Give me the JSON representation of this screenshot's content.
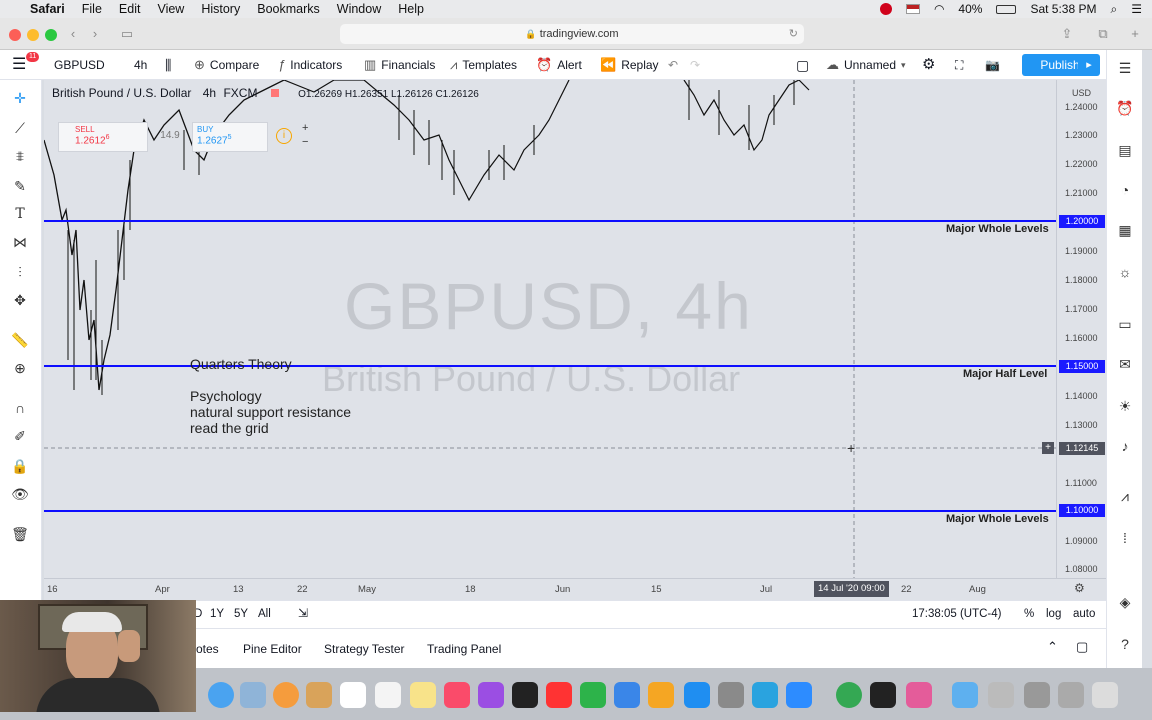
{
  "menubar": {
    "app": "Safari",
    "items": [
      "File",
      "Edit",
      "View",
      "History",
      "Bookmarks",
      "Window",
      "Help"
    ],
    "battery": "40%",
    "clock": "Sat 5:38 PM"
  },
  "browser": {
    "url": "tradingview.com",
    "badge": "11"
  },
  "header": {
    "symbol": "GBPUSD",
    "interval": "4h",
    "compare": "Compare",
    "indicators": "Indicators",
    "financials": "Financials",
    "templates": "Templates",
    "alert": "Alert",
    "replay": "Replay",
    "layout_name": "Unnamed",
    "publish": "Publish"
  },
  "legend": {
    "name": "British Pound / U.S. Dollar",
    "interval": "4h",
    "exchange": "FXCM",
    "ohlc": "O1.26269  H1.26351  L1.26126  C1.26126"
  },
  "trade": {
    "sell_label": "SELL",
    "sell_price": "1.2612",
    "sell_sup": "6",
    "spread": "14.9",
    "buy_label": "BUY",
    "buy_price": "1.2627",
    "buy_sup": "5"
  },
  "watermark": {
    "symbol": "GBPUSD, 4h",
    "description": "British Pound / U.S. Dollar"
  },
  "annotations": {
    "title": "Quarters Theory",
    "line1": "Psychology",
    "line2": "natural support resistance",
    "line3": "read the grid"
  },
  "levels": [
    {
      "price": "1.20000",
      "label": "Major Whole Levels"
    },
    {
      "price": "1.15000",
      "label": "Major Half Level"
    },
    {
      "price": "1.10000",
      "label": "Major Whole Levels"
    }
  ],
  "price_scale": {
    "currency": "USD",
    "ticks": [
      "1.24000",
      "1.23000",
      "1.22000",
      "1.21000",
      "1.19000",
      "1.18000",
      "1.17000",
      "1.16000",
      "1.14000",
      "1.13000",
      "1.11000",
      "1.09000",
      "1.08000"
    ],
    "crosshair_price": "1.12145"
  },
  "time_scale": {
    "ticks": [
      "16",
      "Apr",
      "13",
      "22",
      "May",
      "18",
      "Jun",
      "15",
      "Jul",
      "22",
      "Aug"
    ],
    "crosshair_time": "14 Jul '20  09:00"
  },
  "bottom_toolbar": {
    "ranges": [
      "D",
      "1Y",
      "5Y",
      "All"
    ],
    "clock": "17:38:05 (UTC-4)",
    "percent": "%",
    "log": "log",
    "auto": "auto"
  },
  "bottom_panel": {
    "tabs": [
      "otes",
      "Pine Editor",
      "Strategy Tester",
      "Trading Panel"
    ]
  },
  "colors": {
    "level_line": "#0d0dff",
    "publish": "#2196f3",
    "chart_bg": "#dfe2e8"
  }
}
